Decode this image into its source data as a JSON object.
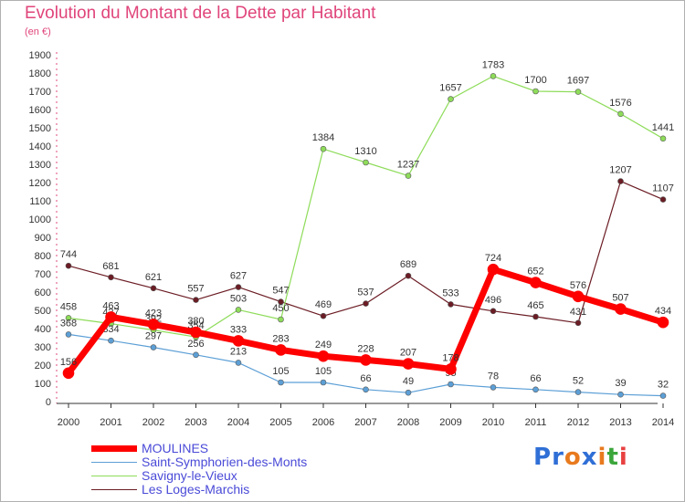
{
  "title": "Evolution du Montant de la Dette par Habitant",
  "unit": "(en €)",
  "logo": "Proxiti",
  "chart_data": {
    "type": "line",
    "title": "Evolution du Montant de la Dette par Habitant",
    "ylabel": "(en €)",
    "ylim": [
      0,
      1900
    ],
    "yticks": [
      0,
      100,
      200,
      300,
      400,
      500,
      600,
      700,
      800,
      900,
      1000,
      1100,
      1200,
      1300,
      1400,
      1500,
      1600,
      1700,
      1800,
      1900
    ],
    "categories": [
      "2000",
      "2001",
      "2002",
      "2003",
      "2004",
      "2005",
      "2006",
      "2007",
      "2008",
      "2009",
      "2010",
      "2011",
      "2012",
      "2013",
      "2014"
    ],
    "grid": false,
    "legend": "bottom-left",
    "series": [
      {
        "name": "Les Loges-Marchis",
        "color": "#6b1c24",
        "width": 1.2,
        "radius": 3,
        "values": [
          744,
          681,
          621,
          557,
          627,
          547,
          469,
          537,
          689,
          533,
          496,
          465,
          431,
          1207,
          1107
        ]
      },
      {
        "name": "Savigny-le-Vieux",
        "color": "#8edc5a",
        "width": 1.2,
        "radius": 3,
        "values": [
          458,
          427,
          392,
          354,
          503,
          450,
          1384,
          1310,
          1237,
          1657,
          1783,
          1700,
          1697,
          1576,
          1441
        ]
      },
      {
        "name": "Saint-Symphorien-des-Monts",
        "color": "#5c9fd6",
        "width": 1.2,
        "radius": 3,
        "values": [
          368,
          334,
          297,
          256,
          213,
          105,
          105,
          66,
          49,
          95,
          78,
          66,
          52,
          39,
          32
        ]
      },
      {
        "name": "MOULINES",
        "color": "#ff0000",
        "width": 7,
        "radius": 6,
        "values": [
          156,
          463,
          423,
          380,
          333,
          283,
          249,
          228,
          207,
          178,
          724,
          652,
          576,
          507,
          434
        ]
      }
    ]
  }
}
